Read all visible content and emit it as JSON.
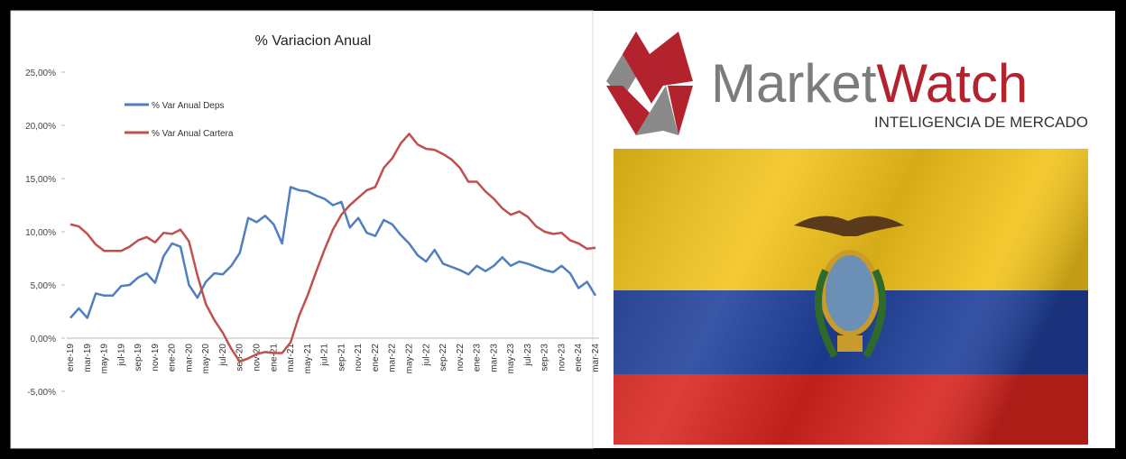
{
  "chart_data": {
    "type": "line",
    "title": "% Variacion Anual",
    "categories": [
      "ene-19",
      null,
      "mar-19",
      null,
      "may-19",
      null,
      "jul-19",
      null,
      "sep-19",
      null,
      "nov-19",
      null,
      "ene-20",
      null,
      "mar-20",
      null,
      "may-20",
      null,
      "jul-20",
      null,
      "sep-20",
      null,
      "nov-20",
      null,
      "ene-21",
      null,
      "mar-21",
      null,
      "may-21",
      null,
      "jul-21",
      null,
      "sep-21",
      null,
      "nov-21",
      null,
      "ene-22",
      null,
      "mar-22",
      null,
      "may-22",
      null,
      "jul-22",
      null,
      "sep-22",
      null,
      "nov-22",
      null,
      "ene-23",
      null,
      "mar-23",
      null,
      "may-23",
      null,
      "jul-23",
      null,
      "sep-23",
      null,
      "nov-23",
      null,
      "ene-24",
      null,
      "mar-24"
    ],
    "series": [
      {
        "name": "% Var Anual Deps",
        "color": "#4f7fbf",
        "values": [
          1.9,
          2.8,
          1.9,
          4.2,
          4.0,
          4.0,
          4.9,
          5.0,
          5.7,
          6.1,
          5.2,
          7.7,
          8.9,
          8.6,
          5.0,
          3.8,
          5.3,
          6.1,
          6.0,
          6.8,
          8.0,
          11.3,
          10.9,
          11.5,
          10.7,
          8.9,
          14.2,
          13.9,
          13.8,
          13.4,
          13.1,
          12.5,
          12.8,
          10.4,
          11.3,
          9.9,
          9.6,
          11.1,
          10.7,
          9.7,
          8.9,
          7.8,
          7.2,
          8.3,
          7.0,
          6.7,
          6.4,
          6.0,
          6.8,
          6.3,
          6.8,
          7.6,
          6.8,
          7.2,
          7.0,
          6.7,
          6.4,
          6.2,
          6.8,
          6.1,
          4.7,
          5.3,
          4.0
        ]
      },
      {
        "name": "% Var Anual Cartera",
        "color": "#c0504d",
        "values": [
          10.7,
          10.5,
          9.8,
          8.8,
          8.2,
          8.2,
          8.2,
          8.6,
          9.2,
          9.5,
          9.0,
          9.9,
          9.8,
          10.2,
          9.1,
          5.9,
          3.2,
          1.7,
          0.5,
          -1.0,
          -2.2,
          -1.9,
          -1.5,
          -1.3,
          -1.4,
          -1.4,
          -0.4,
          2.1,
          4.0,
          6.2,
          8.3,
          10.2,
          11.6,
          12.5,
          13.2,
          13.9,
          14.2,
          16.0,
          16.9,
          18.3,
          19.2,
          18.2,
          17.8,
          17.7,
          17.3,
          16.8,
          16.0,
          14.7,
          14.7,
          13.8,
          13.1,
          12.2,
          11.6,
          11.9,
          11.4,
          10.5,
          10.0,
          9.8,
          9.9,
          9.2,
          8.9,
          8.4,
          8.5
        ]
      }
    ],
    "ylim": [
      -5,
      25
    ],
    "yticks": [
      {
        "value": -5,
        "label": "-5,00%"
      },
      {
        "value": 0,
        "label": "0,00%"
      },
      {
        "value": 5,
        "label": "5,00%"
      },
      {
        "value": 10,
        "label": "10,00%"
      },
      {
        "value": 15,
        "label": "15,00%"
      },
      {
        "value": 20,
        "label": "20,00%"
      },
      {
        "value": 25,
        "label": "25,00%"
      }
    ],
    "grid": false
  },
  "logo": {
    "name_gray": "Market",
    "name_red": "Watch",
    "tagline": "INTELIGENCIA DE MERCADO"
  }
}
